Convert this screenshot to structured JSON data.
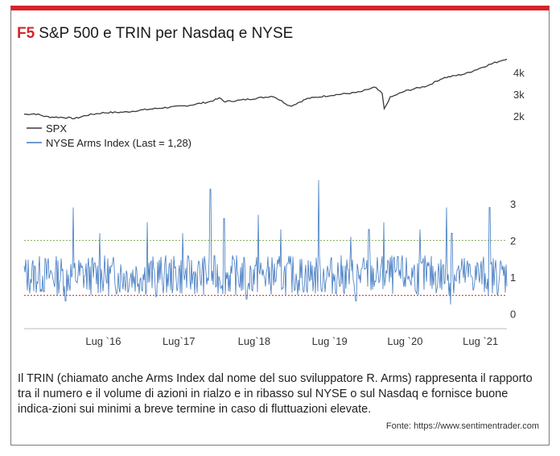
{
  "figure": {
    "code": "F5",
    "title": "S&P 500 e TRIN per Nasdaq e NYSE",
    "caption": "Il TRIN (chiamato anche Arms Index dal nome del suo sviluppatore R. Arms) rappresenta il rapporto tra il numero e il volume di azioni in rialzo e in ribasso sul NYSE o sul Nasdaq e fornisce buone indica-zioni sui minimi a breve termine in caso di fluttuazioni elevate.",
    "source": "Fonte: https://www.sentimentrader.com"
  },
  "colors": {
    "accent": "#d5252a",
    "spx": "#3a3a3a",
    "trin": "#3f78c0",
    "upper_ref": "#8fb26a",
    "lower_ref": "#e0483e",
    "axis": "#555555"
  },
  "chart_data": [
    {
      "type": "line",
      "legend_position": "top-left",
      "series": [
        {
          "name": "SPX",
          "x": [
            2015.45,
            2015.6,
            2015.75,
            2016.0,
            2016.12,
            2016.3,
            2016.5,
            2016.8,
            2017.0,
            2017.3,
            2017.6,
            2017.9,
            2018.05,
            2018.1,
            2018.3,
            2018.6,
            2018.75,
            2018.98,
            2019.2,
            2019.5,
            2019.9,
            2020.1,
            2020.2,
            2020.22,
            2020.3,
            2020.5,
            2020.8,
            2021.0,
            2021.3,
            2021.6,
            2021.85
          ],
          "values": [
            2080,
            2100,
            1960,
            1930,
            1880,
            2050,
            2150,
            2180,
            2270,
            2380,
            2470,
            2650,
            2830,
            2660,
            2720,
            2850,
            2920,
            2450,
            2800,
            2950,
            3100,
            3330,
            3020,
            2290,
            2850,
            3150,
            3400,
            3750,
            3950,
            4350,
            4650
          ],
          "ylim": [
            1700,
            4900
          ],
          "ticks": [
            "2k",
            "3k",
            "4k"
          ],
          "tick_values": [
            2000,
            3000,
            4000
          ]
        }
      ]
    },
    {
      "type": "line",
      "legend_position": "top-left",
      "series": [
        {
          "name": "NYSE Arms Index (Last = 1,28)",
          "x_start": 2015.45,
          "x_end": 2021.85,
          "baseline": 1.0,
          "typical_range": [
            0.5,
            1.6
          ],
          "spikes": [
            {
              "x": 2016.1,
              "value": 2.9
            },
            {
              "x": 2016.45,
              "value": 2.2
            },
            {
              "x": 2017.08,
              "value": 2.5
            },
            {
              "x": 2017.55,
              "value": 2.2
            },
            {
              "x": 2017.92,
              "value": 3.4
            },
            {
              "x": 2018.1,
              "value": 2.6
            },
            {
              "x": 2018.55,
              "value": 2.7
            },
            {
              "x": 2018.85,
              "value": 2.3
            },
            {
              "x": 2019.35,
              "value": 3.65
            },
            {
              "x": 2019.78,
              "value": 2.1
            },
            {
              "x": 2020.02,
              "value": 2.3
            },
            {
              "x": 2020.22,
              "value": 2.5
            },
            {
              "x": 2020.7,
              "value": 2.3
            },
            {
              "x": 2021.05,
              "value": 2.9
            },
            {
              "x": 2021.12,
              "value": 2.2
            },
            {
              "x": 2021.62,
              "value": 2.9
            }
          ],
          "dips": [
            {
              "x": 2016.0,
              "value": 0.35
            },
            {
              "x": 2017.2,
              "value": 0.45
            },
            {
              "x": 2018.4,
              "value": 0.4
            },
            {
              "x": 2019.85,
              "value": 0.35
            },
            {
              "x": 2021.1,
              "value": 0.25
            }
          ]
        }
      ],
      "ylim": [
        -0.3,
        4.1
      ],
      "yticks": [
        0,
        1,
        2,
        3
      ],
      "reference_lines": [
        {
          "value": 2.0,
          "style": "dotted",
          "color": "green"
        },
        {
          "value": 0.5,
          "style": "dotted",
          "color": "red"
        }
      ],
      "x_ticks": [
        "Lug `16",
        "Lug`17",
        "Lug`18",
        "Lug `19",
        "Lug `20",
        "Lug `21"
      ],
      "x_tick_values": [
        2016.5,
        2017.5,
        2018.5,
        2019.5,
        2020.5,
        2021.5
      ]
    }
  ]
}
